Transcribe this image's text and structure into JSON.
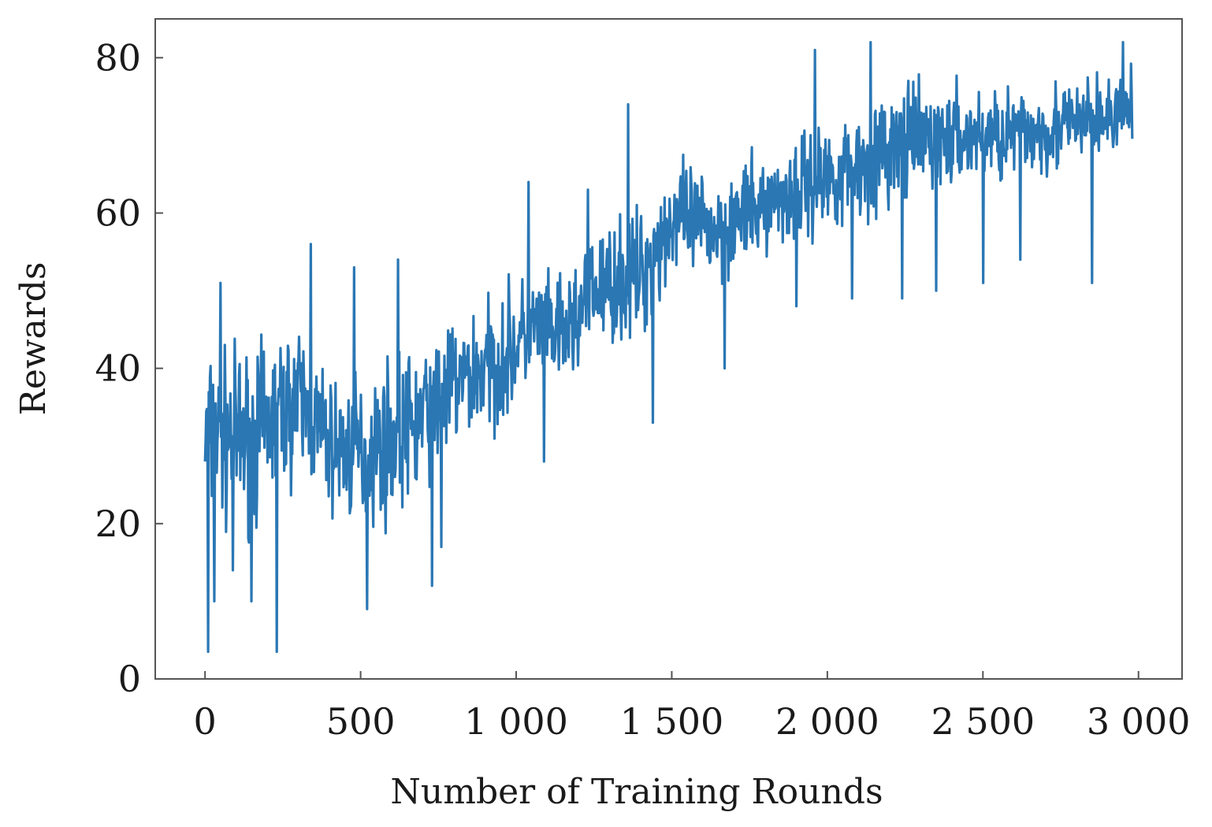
{
  "chart_data": {
    "type": "line",
    "title": "",
    "xlabel": "Number of Training Rounds",
    "ylabel": "Rewards",
    "xlim": [
      -160,
      3140
    ],
    "ylim": [
      0,
      85
    ],
    "x_ticks": [
      0,
      500,
      1000,
      1500,
      2000,
      2500,
      3000
    ],
    "x_tick_labels": [
      "0",
      "500",
      "1 000",
      "1 500",
      "2 000",
      "2 500",
      "3 000"
    ],
    "y_ticks": [
      0,
      20,
      40,
      60,
      80
    ],
    "y_tick_labels": [
      "0",
      "20",
      "40",
      "60",
      "80"
    ],
    "grid": false,
    "series": [
      {
        "name": "Rewards",
        "color": "#2a77b4",
        "x_start": 0,
        "x_end": 2980,
        "n_points": 1500,
        "noise_seed": 7,
        "trend": [
          {
            "x": 0,
            "mean": 31,
            "spread": 9
          },
          {
            "x": 150,
            "mean": 31,
            "spread": 9
          },
          {
            "x": 300,
            "mean": 36,
            "spread": 8
          },
          {
            "x": 400,
            "mean": 30,
            "spread": 7
          },
          {
            "x": 500,
            "mean": 29,
            "spread": 8
          },
          {
            "x": 650,
            "mean": 32,
            "spread": 8
          },
          {
            "x": 800,
            "mean": 38,
            "spread": 7
          },
          {
            "x": 950,
            "mean": 41,
            "spread": 7
          },
          {
            "x": 1050,
            "mean": 45,
            "spread": 6
          },
          {
            "x": 1150,
            "mean": 44,
            "spread": 6
          },
          {
            "x": 1250,
            "mean": 50,
            "spread": 6
          },
          {
            "x": 1400,
            "mean": 52,
            "spread": 7
          },
          {
            "x": 1500,
            "mean": 59,
            "spread": 6
          },
          {
            "x": 1650,
            "mean": 58,
            "spread": 6
          },
          {
            "x": 1800,
            "mean": 61,
            "spread": 5
          },
          {
            "x": 1950,
            "mean": 64,
            "spread": 6
          },
          {
            "x": 2100,
            "mean": 66,
            "spread": 6
          },
          {
            "x": 2250,
            "mean": 69,
            "spread": 6
          },
          {
            "x": 2500,
            "mean": 70,
            "spread": 5
          },
          {
            "x": 2750,
            "mean": 71,
            "spread": 5
          },
          {
            "x": 2980,
            "mean": 73,
            "spread": 4
          }
        ],
        "spikes": [
          {
            "x": 10,
            "value": 3.5
          },
          {
            "x": 30,
            "value": 10
          },
          {
            "x": 50,
            "value": 51
          },
          {
            "x": 90,
            "value": 14
          },
          {
            "x": 150,
            "value": 10
          },
          {
            "x": 230,
            "value": 3.5
          },
          {
            "x": 340,
            "value": 56
          },
          {
            "x": 480,
            "value": 53
          },
          {
            "x": 520,
            "value": 9
          },
          {
            "x": 620,
            "value": 54
          },
          {
            "x": 730,
            "value": 12
          },
          {
            "x": 760,
            "value": 17
          },
          {
            "x": 1040,
            "value": 64
          },
          {
            "x": 1090,
            "value": 28
          },
          {
            "x": 1230,
            "value": 63
          },
          {
            "x": 1360,
            "value": 74
          },
          {
            "x": 1440,
            "value": 33
          },
          {
            "x": 1670,
            "value": 40
          },
          {
            "x": 1900,
            "value": 48
          },
          {
            "x": 1960,
            "value": 81
          },
          {
            "x": 2080,
            "value": 49
          },
          {
            "x": 2140,
            "value": 82
          },
          {
            "x": 2240,
            "value": 49
          },
          {
            "x": 2350,
            "value": 50
          },
          {
            "x": 2500,
            "value": 51
          },
          {
            "x": 2620,
            "value": 54
          },
          {
            "x": 2850,
            "value": 51
          },
          {
            "x": 2950,
            "value": 82
          }
        ]
      }
    ]
  }
}
